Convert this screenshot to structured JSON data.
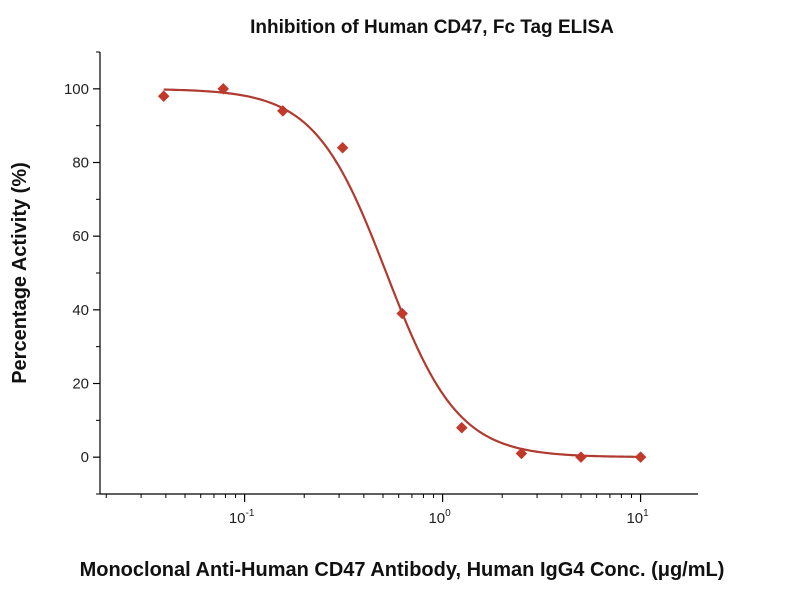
{
  "chart_data": {
    "type": "scatter",
    "title": "Inhibition of Human CD47, Fc Tag ELISA",
    "xlabel": "Monoclonal Anti-Human CD47 Antibody, Human IgG4 Conc. (μg/mL)",
    "ylabel": "Percentage Activity (%)",
    "xscale": "log",
    "xlim": [
      0.0186,
      19.5
    ],
    "ylim": [
      -10,
      110
    ],
    "xticks": [
      {
        "value": 0.1,
        "base": "10",
        "exp": "-1"
      },
      {
        "value": 1,
        "base": "10",
        "exp": "0"
      },
      {
        "value": 10,
        "base": "10",
        "exp": "1"
      }
    ],
    "yticks": [
      {
        "value": 0,
        "label": "0"
      },
      {
        "value": 20,
        "label": "20"
      },
      {
        "value": 40,
        "label": "40"
      },
      {
        "value": 60,
        "label": "60"
      },
      {
        "value": 80,
        "label": "80"
      },
      {
        "value": 100,
        "label": "100"
      }
    ],
    "series": [
      {
        "name": "Percentage Activity",
        "marker": "diamond",
        "color": "#c0392b",
        "x": [
          0.039,
          0.078,
          0.156,
          0.3125,
          0.625,
          1.25,
          2.5,
          5,
          10
        ],
        "y": [
          98,
          100,
          94,
          84,
          39,
          8,
          1,
          0,
          0
        ]
      }
    ],
    "fit_curve": {
      "model": "4PL",
      "color": "#b03a30",
      "top": 100,
      "bottom": 0,
      "ec50": 0.52,
      "hill": 2.4
    },
    "grid": false,
    "legend": "none"
  }
}
